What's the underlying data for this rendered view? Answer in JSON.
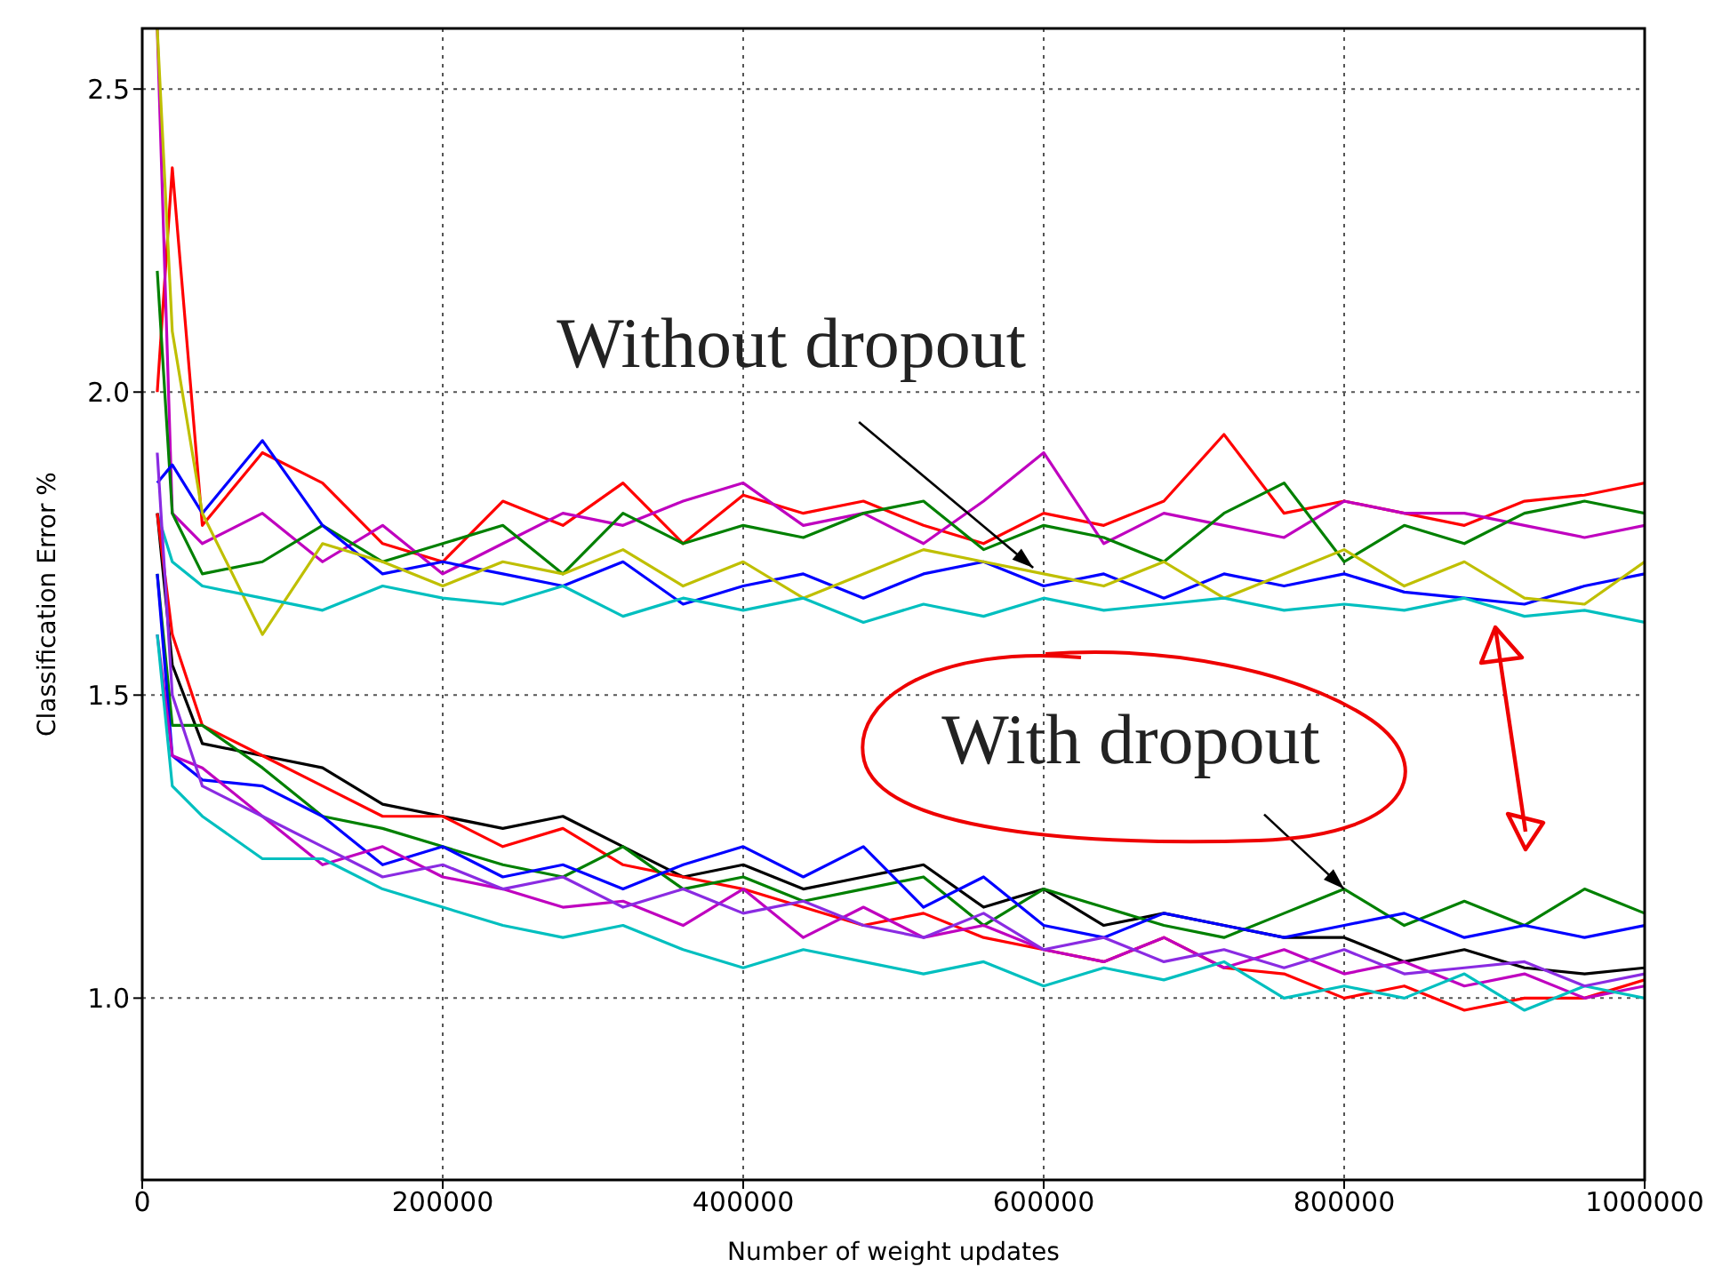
{
  "chart_data": {
    "type": "line",
    "xlabel": "Number of weight updates",
    "ylabel": "Classification Error %",
    "x": [
      10000,
      20000,
      40000,
      80000,
      120000,
      160000,
      200000,
      240000,
      280000,
      320000,
      360000,
      400000,
      440000,
      480000,
      520000,
      560000,
      600000,
      640000,
      680000,
      720000,
      760000,
      800000,
      840000,
      880000,
      920000,
      960000,
      1000000
    ],
    "series": [
      {
        "color": "#ff0000",
        "values": [
          2.0,
          2.37,
          1.78,
          1.9,
          1.85,
          1.75,
          1.72,
          1.82,
          1.78,
          1.85,
          1.75,
          1.83,
          1.8,
          1.82,
          1.78,
          1.75,
          1.8,
          1.78,
          1.82,
          1.93,
          1.8,
          1.82,
          1.8,
          1.78,
          1.82,
          1.83,
          1.85
        ]
      },
      {
        "color": "#bf00bf",
        "values": [
          2.6,
          1.8,
          1.75,
          1.8,
          1.72,
          1.78,
          1.7,
          1.75,
          1.8,
          1.78,
          1.82,
          1.85,
          1.78,
          1.8,
          1.75,
          1.82,
          1.9,
          1.75,
          1.8,
          1.78,
          1.76,
          1.82,
          1.8,
          1.8,
          1.78,
          1.76,
          1.78
        ]
      },
      {
        "color": "#008000",
        "values": [
          2.2,
          1.8,
          1.7,
          1.72,
          1.78,
          1.72,
          1.75,
          1.78,
          1.7,
          1.8,
          1.75,
          1.78,
          1.76,
          1.8,
          1.82,
          1.74,
          1.78,
          1.76,
          1.72,
          1.8,
          1.85,
          1.72,
          1.78,
          1.75,
          1.8,
          1.82,
          1.8
        ]
      },
      {
        "color": "#0000ff",
        "values": [
          1.85,
          1.88,
          1.8,
          1.92,
          1.78,
          1.7,
          1.72,
          1.7,
          1.68,
          1.72,
          1.65,
          1.68,
          1.7,
          1.66,
          1.7,
          1.72,
          1.68,
          1.7,
          1.66,
          1.7,
          1.68,
          1.7,
          1.67,
          1.66,
          1.65,
          1.68,
          1.7
        ]
      },
      {
        "color": "#bfbf00",
        "values": [
          2.6,
          2.1,
          1.8,
          1.6,
          1.75,
          1.72,
          1.68,
          1.72,
          1.7,
          1.74,
          1.68,
          1.72,
          1.66,
          1.7,
          1.74,
          1.72,
          1.7,
          1.68,
          1.72,
          1.66,
          1.7,
          1.74,
          1.68,
          1.72,
          1.66,
          1.65,
          1.72
        ]
      },
      {
        "color": "#00bfbf",
        "values": [
          1.8,
          1.72,
          1.68,
          1.66,
          1.64,
          1.68,
          1.66,
          1.65,
          1.68,
          1.63,
          1.66,
          1.64,
          1.66,
          1.62,
          1.65,
          1.63,
          1.66,
          1.64,
          1.65,
          1.66,
          1.64,
          1.65,
          1.64,
          1.66,
          1.63,
          1.64,
          1.62
        ]
      },
      {
        "color": "#000000",
        "values": [
          1.8,
          1.55,
          1.42,
          1.4,
          1.38,
          1.32,
          1.3,
          1.28,
          1.3,
          1.25,
          1.2,
          1.22,
          1.18,
          1.2,
          1.22,
          1.15,
          1.18,
          1.12,
          1.14,
          1.12,
          1.1,
          1.1,
          1.06,
          1.08,
          1.05,
          1.04,
          1.05
        ]
      },
      {
        "color": "#ff0000",
        "values": [
          1.8,
          1.6,
          1.45,
          1.4,
          1.35,
          1.3,
          1.3,
          1.25,
          1.28,
          1.22,
          1.2,
          1.18,
          1.15,
          1.12,
          1.14,
          1.1,
          1.08,
          1.06,
          1.1,
          1.05,
          1.04,
          1.0,
          1.02,
          0.98,
          1.0,
          1.0,
          1.03
        ]
      },
      {
        "color": "#008000",
        "values": [
          1.7,
          1.45,
          1.45,
          1.38,
          1.3,
          1.28,
          1.25,
          1.22,
          1.2,
          1.25,
          1.18,
          1.2,
          1.16,
          1.18,
          1.2,
          1.12,
          1.18,
          1.15,
          1.12,
          1.1,
          1.14,
          1.18,
          1.12,
          1.16,
          1.12,
          1.18,
          1.14
        ]
      },
      {
        "color": "#0000ff",
        "values": [
          1.7,
          1.4,
          1.36,
          1.35,
          1.3,
          1.22,
          1.25,
          1.2,
          1.22,
          1.18,
          1.22,
          1.25,
          1.2,
          1.25,
          1.15,
          1.2,
          1.12,
          1.1,
          1.14,
          1.12,
          1.1,
          1.12,
          1.14,
          1.1,
          1.12,
          1.1,
          1.12
        ]
      },
      {
        "color": "#bf00bf",
        "values": [
          1.6,
          1.4,
          1.38,
          1.3,
          1.22,
          1.25,
          1.2,
          1.18,
          1.15,
          1.16,
          1.12,
          1.18,
          1.1,
          1.15,
          1.1,
          1.12,
          1.08,
          1.06,
          1.1,
          1.05,
          1.08,
          1.04,
          1.06,
          1.02,
          1.04,
          1.0,
          1.02
        ]
      },
      {
        "color": "#00bfbf",
        "values": [
          1.6,
          1.35,
          1.3,
          1.23,
          1.23,
          1.18,
          1.15,
          1.12,
          1.1,
          1.12,
          1.08,
          1.05,
          1.08,
          1.06,
          1.04,
          1.06,
          1.02,
          1.05,
          1.03,
          1.06,
          1.0,
          1.02,
          1.0,
          1.04,
          0.98,
          1.02,
          1.0
        ]
      },
      {
        "color": "#8a2be2",
        "values": [
          1.9,
          1.5,
          1.35,
          1.3,
          1.25,
          1.2,
          1.22,
          1.18,
          1.2,
          1.15,
          1.18,
          1.14,
          1.16,
          1.12,
          1.1,
          1.14,
          1.08,
          1.1,
          1.06,
          1.08,
          1.05,
          1.08,
          1.04,
          1.05,
          1.06,
          1.02,
          1.04
        ]
      }
    ],
    "xlim": [
      0,
      1000000
    ],
    "xticks": [
      0,
      200000,
      400000,
      600000,
      800000,
      1000000
    ],
    "ylim": [
      0.7,
      2.6
    ],
    "yticks": [
      {
        "value": 1,
        "label": "1.0"
      },
      {
        "value": 1.5,
        "label": "1.5"
      },
      {
        "value": 2,
        "label": "2.0"
      },
      {
        "value": 2.5,
        "label": "2.5"
      }
    ],
    "grid": true,
    "annotations": [
      {
        "text": "Without dropout",
        "x": 593000,
        "y": 1.71
      },
      {
        "text": "With dropout",
        "x": 800000,
        "y": 1.18
      }
    ]
  }
}
